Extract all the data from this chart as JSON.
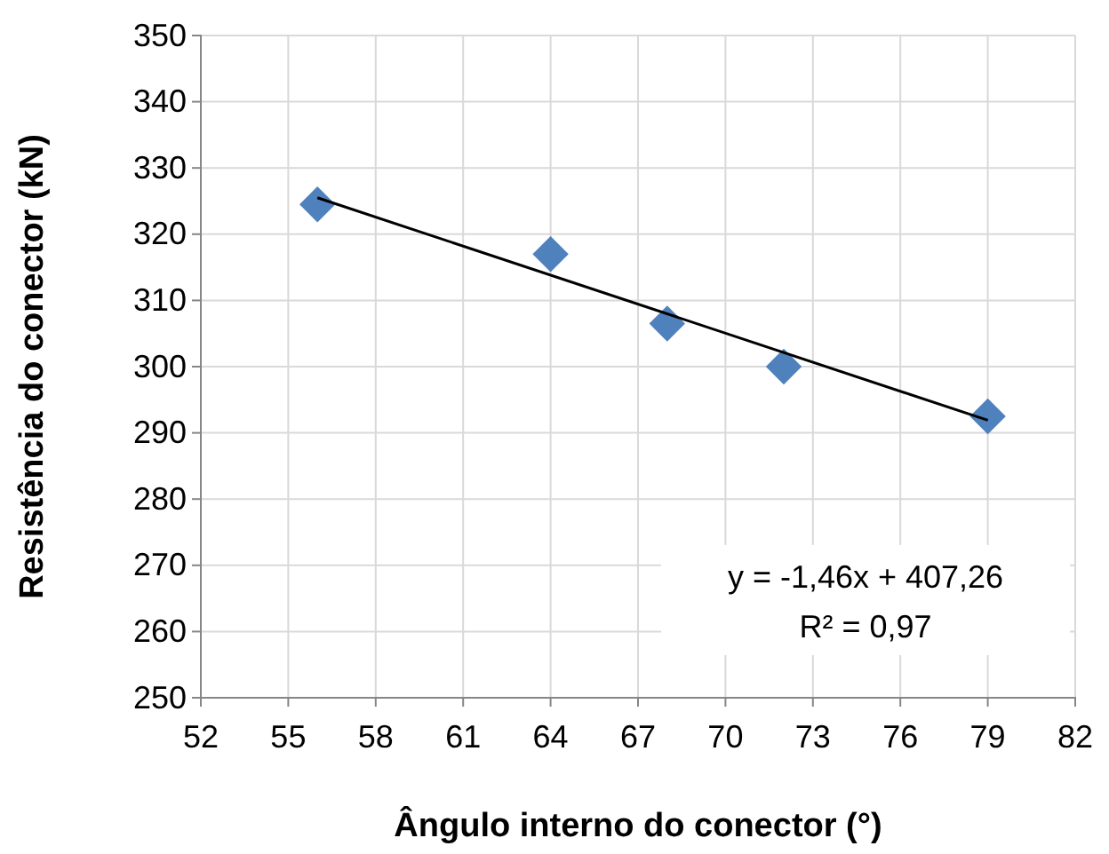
{
  "chart_data": {
    "type": "scatter",
    "xlabel": "Ângulo interno do conector (°)",
    "ylabel": "Resistência do conector (kN)",
    "x": [
      56,
      64,
      68,
      72,
      79
    ],
    "series": [
      {
        "color": "#4f81bd",
        "marker": "diamond",
        "values": [
          324.5,
          317,
          306.5,
          300,
          292.5
        ]
      },
      {
        "type": "line",
        "color": "#000000",
        "marker": "none",
        "x": [
          56,
          79
        ],
        "values": [
          325.5,
          291.9
        ]
      }
    ],
    "xlim": [
      52,
      82
    ],
    "xticks": [
      52,
      55,
      58,
      61,
      64,
      67,
      70,
      73,
      76,
      79,
      82
    ],
    "ylim": [
      250,
      350
    ],
    "yticks": [
      250,
      260,
      270,
      280,
      290,
      300,
      310,
      320,
      330,
      340,
      350
    ],
    "grid": true,
    "annotations": [
      "y = -1,46x + 407,26",
      "R² = 0,97"
    ]
  }
}
